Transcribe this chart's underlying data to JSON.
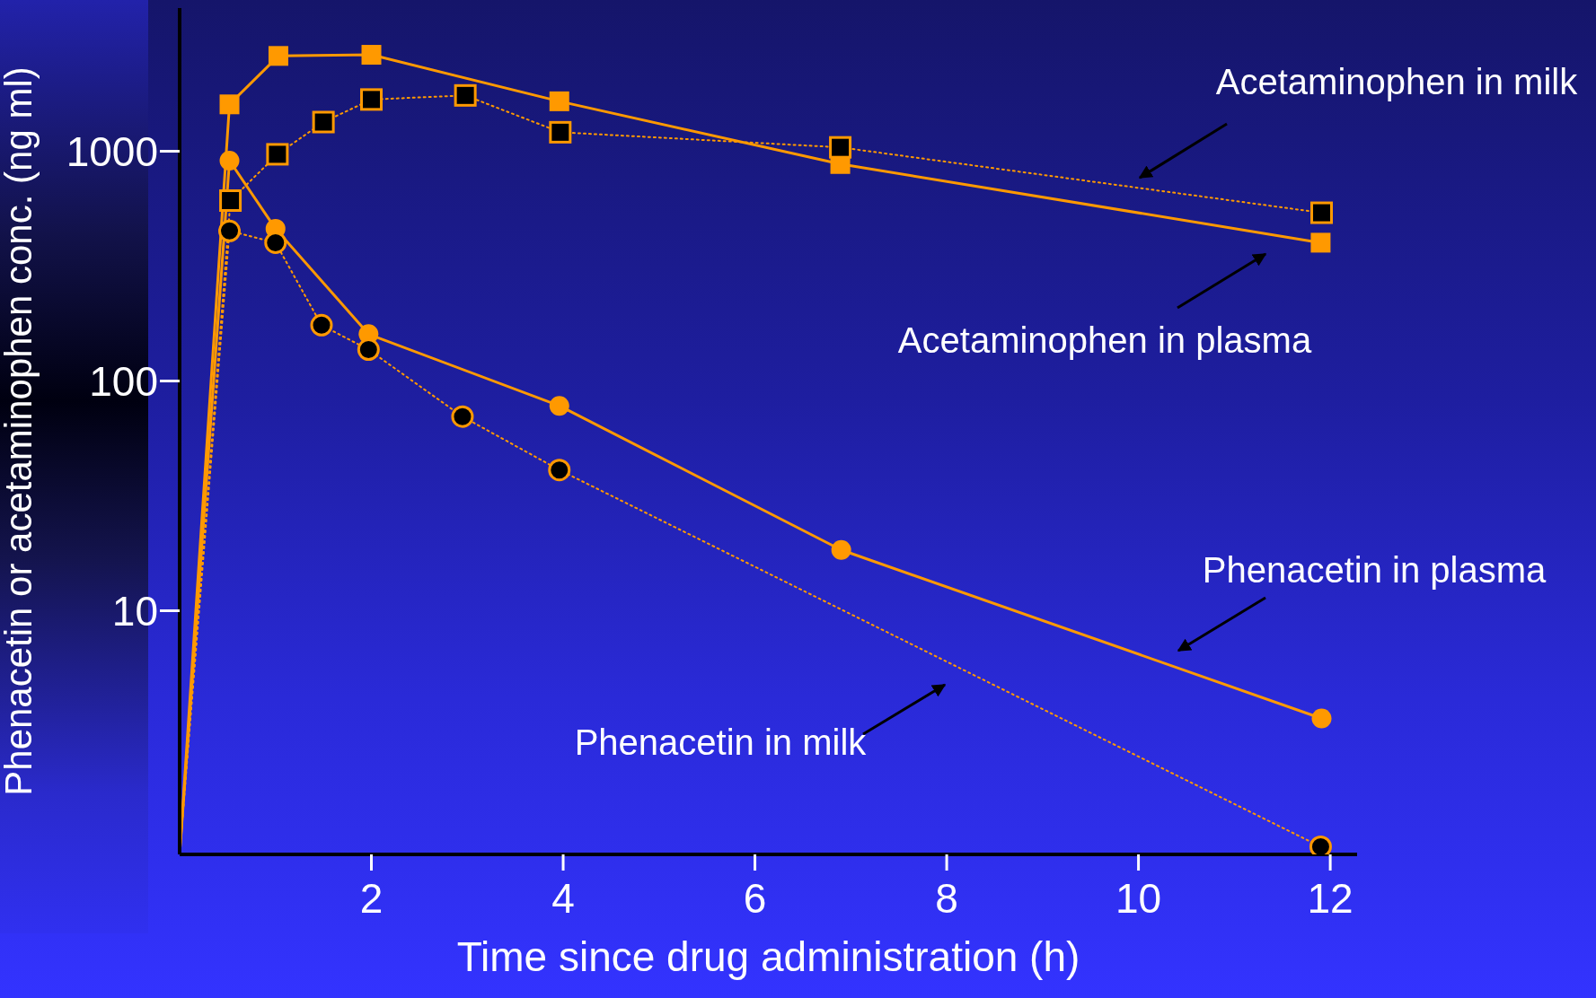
{
  "chart_data": {
    "type": "line",
    "xlabel": "Time since drug administration (h)",
    "ylabel": "Phenacetin or acetaminophen conc. (ng ml)",
    "log": "y",
    "xlim": [
      0,
      12.28
    ],
    "xticks": [
      2,
      4,
      6,
      8,
      10,
      12
    ],
    "ylim": [
      0.87,
      4200
    ],
    "yticks": [
      10,
      100,
      1000
    ],
    "series": [
      {
        "color": "#ff9900",
        "marker": "square",
        "line_style": "solid",
        "x": [
          0,
          0.52,
          1.03,
          2.0,
          3.96,
          6.89,
          11.9
        ],
        "values": [
          0.87,
          1600,
          2600,
          2630,
          1650,
          880,
          400
        ]
      },
      {
        "color": "#ff9900",
        "marker": "square",
        "line_style": "dotted",
        "x": [
          0,
          0.53,
          1.02,
          1.5,
          2.0,
          2.98,
          3.97,
          6.89,
          11.91
        ],
        "values": [
          0.87,
          610,
          970,
          1340,
          1680,
          1750,
          1210,
          1040,
          540
        ]
      },
      {
        "color": "#ff9900",
        "marker": "circle",
        "line_style": "solid",
        "x": [
          0,
          0.52,
          1.0,
          1.97,
          3.96,
          6.9,
          11.91
        ],
        "values": [
          0.87,
          910,
          460,
          160,
          78,
          18.4,
          3.4
        ]
      },
      {
        "color": "#ff9900",
        "marker": "circle",
        "line_style": "dotted",
        "x": [
          0,
          0.52,
          1.0,
          1.48,
          1.97,
          2.95,
          3.96,
          11.9
        ],
        "values": [
          0.87,
          450,
          400,
          175,
          137,
          70,
          41,
          0.94
        ]
      }
    ],
    "annotations": [
      "Acetaminophen in milk",
      "Acetaminophen in plasma",
      "Phenacetin in plasma",
      "Phenacetin in milk"
    ]
  }
}
